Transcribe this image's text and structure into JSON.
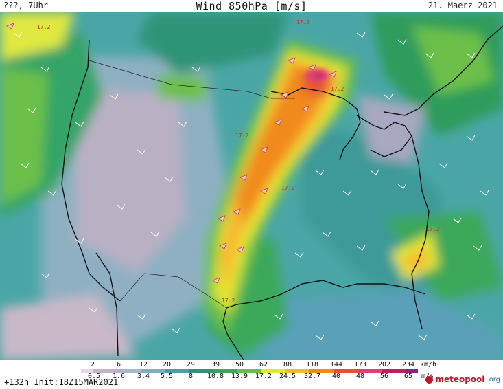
{
  "header": {
    "left": "???, 7Uhr",
    "title": "Wind 850hPa [m/s]",
    "date": "21. Maerz 2021"
  },
  "map": {
    "contour_labels": [
      "17.2",
      "17.2",
      "17.2",
      "17.2",
      "17.2",
      "17.2",
      "17.2"
    ]
  },
  "legend": {
    "kmh_ticks": [
      "2",
      "6",
      "12",
      "20",
      "29",
      "39",
      "50",
      "62",
      "88",
      "118",
      "144",
      "173",
      "202",
      "234"
    ],
    "kmh_unit": "km/h",
    "ms_ticks": [
      "0.5",
      "1.6",
      "3.4",
      "5.5",
      "8",
      "10.8",
      "13.9",
      "17.2",
      "24.5",
      "32.7",
      "40",
      "48",
      "56",
      "65"
    ],
    "ms_unit": "m/s",
    "colors": [
      "#e8d8e4",
      "#c6b4c6",
      "#a8b8c8",
      "#7ab0c0",
      "#4aa0a8",
      "#2e9478",
      "#3aa85a",
      "#6cc04a",
      "#e4e830",
      "#f8b830",
      "#f08a1a",
      "#e85030",
      "#e0407a",
      "#c02060",
      "#902080"
    ]
  },
  "footer": {
    "run_info": "+132h  Init:18Z15MAR2021",
    "logo": "meteopool",
    "logo_tld": ".org"
  }
}
